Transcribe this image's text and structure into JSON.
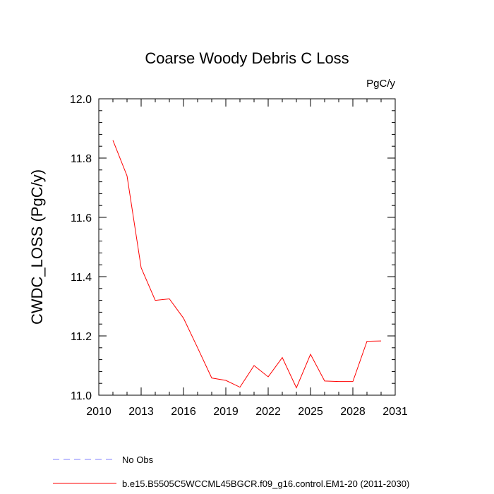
{
  "chart_data": {
    "type": "line",
    "title": "Coarse Woody Debris C Loss",
    "units": "PgC/y",
    "ylabel": "CWDC_LOSS  (PgC/y)",
    "xlabel": "",
    "xlim": [
      2010,
      2031
    ],
    "ylim": [
      11.0,
      12.0
    ],
    "x_ticks": [
      "2010",
      "2013",
      "2016",
      "2019",
      "2022",
      "2025",
      "2028",
      "2031"
    ],
    "y_ticks": [
      "11.0",
      "11.2",
      "11.4",
      "11.6",
      "11.8",
      "12.0"
    ],
    "grid": false,
    "x": [
      2011,
      2012,
      2013,
      2014,
      2015,
      2016,
      2017,
      2018,
      2019,
      2020,
      2021,
      2022,
      2023,
      2024,
      2025,
      2026,
      2027,
      2028,
      2029,
      2030
    ],
    "series": [
      {
        "name": "b.e15.B5505C5WCCML45BGCR.f09_g16.control.EM1-20 (2011-2030)",
        "color": "#ff0000",
        "style": "solid",
        "values": [
          11.86,
          11.74,
          11.43,
          11.32,
          11.325,
          11.26,
          11.16,
          11.058,
          11.05,
          11.027,
          11.1,
          11.062,
          11.127,
          11.025,
          11.138,
          11.048,
          11.046,
          11.046,
          11.182,
          11.183
        ]
      }
    ],
    "legend": [
      {
        "label": "No Obs",
        "color": "#8080ff",
        "style": "dashed"
      },
      {
        "label": "b.e15.B5505C5WCCML45BGCR.f09_g16.control.EM1-20 (2011-2030)",
        "color": "#ff0000",
        "style": "solid"
      }
    ],
    "legend_position": "bottom-left"
  }
}
